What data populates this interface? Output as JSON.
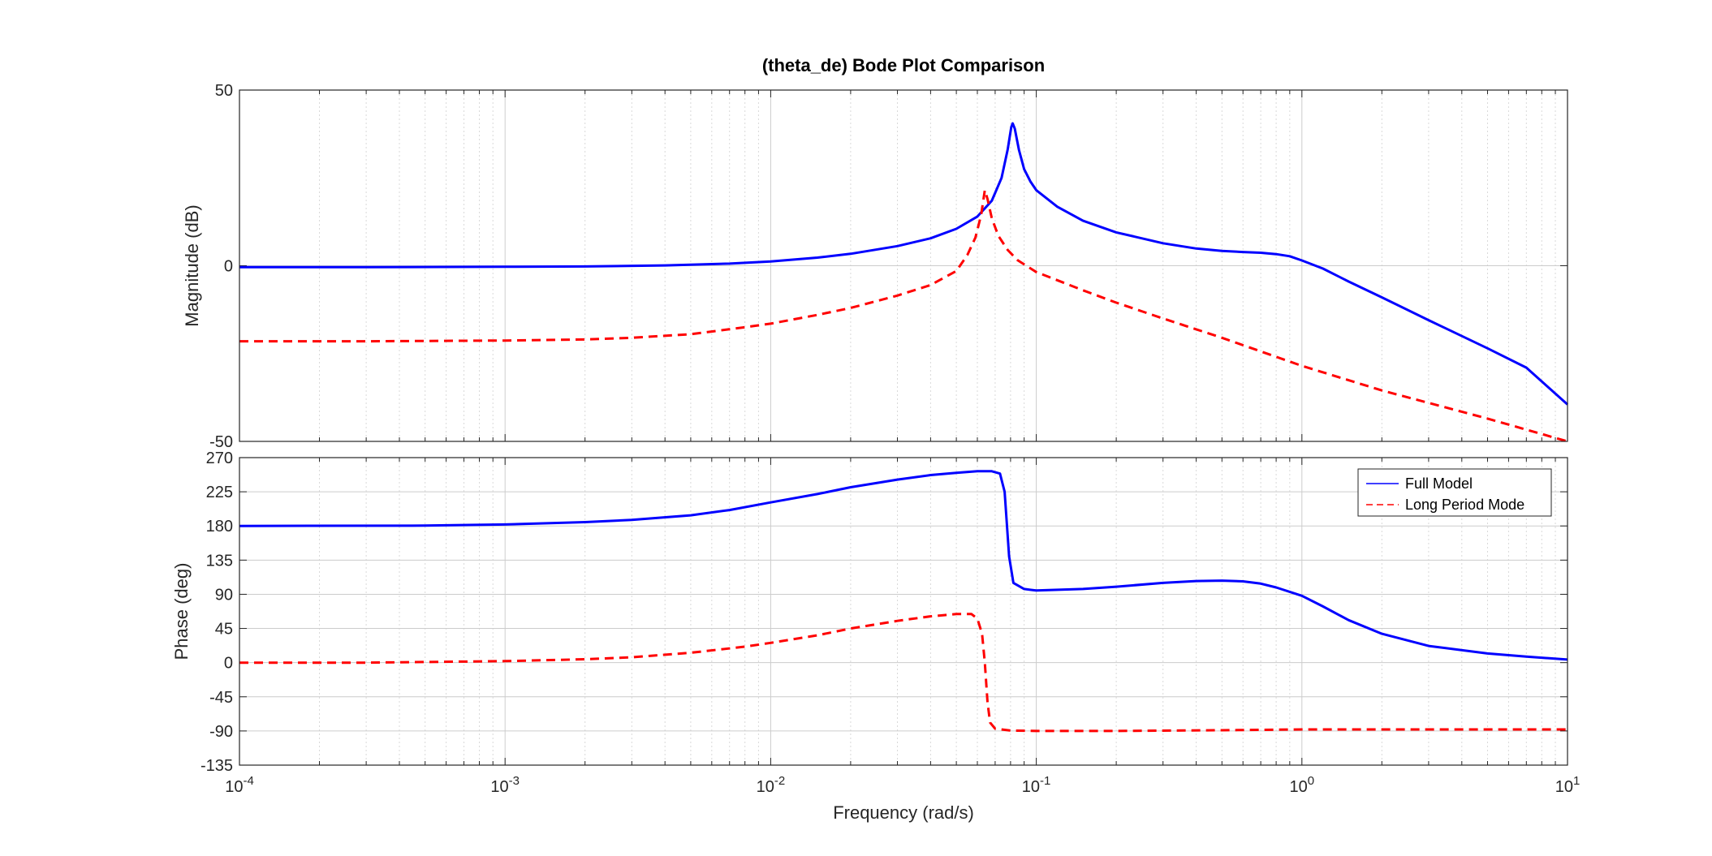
{
  "chart_data": {
    "type": "line",
    "title": "(theta_de) Bode Plot Comparison",
    "xlabel": "Frequency  (rad/s)",
    "x_scale": "log",
    "xlim": [
      0.0001,
      10
    ],
    "x_tick_values": [
      0.0001,
      0.001,
      0.01,
      0.1,
      1,
      10
    ],
    "x_tick_labels": [
      {
        "base": "10",
        "exp": "-4"
      },
      {
        "base": "10",
        "exp": "-3"
      },
      {
        "base": "10",
        "exp": "-2"
      },
      {
        "base": "10",
        "exp": "-1"
      },
      {
        "base": "10",
        "exp": "0"
      },
      {
        "base": "10",
        "exp": "1"
      }
    ],
    "grid": true,
    "legend": {
      "placement": "top-right",
      "in_panel": "phase"
    },
    "magnitude": {
      "ylabel": "Magnitude (dB)",
      "ylim": [
        -50,
        50
      ],
      "y_ticks": [
        -50,
        0,
        50
      ],
      "y_tick_labels": [
        "-50",
        "0",
        "50"
      ],
      "series": [
        {
          "name": "Full Model",
          "color": "#0000ff",
          "style": "solid",
          "points": [
            [
              0.0001,
              -0.4
            ],
            [
              0.0003,
              -0.4
            ],
            [
              0.001,
              -0.3
            ],
            [
              0.002,
              -0.2
            ],
            [
              0.004,
              0.1
            ],
            [
              0.007,
              0.6
            ],
            [
              0.01,
              1.2
            ],
            [
              0.015,
              2.3
            ],
            [
              0.02,
              3.4
            ],
            [
              0.03,
              5.6
            ],
            [
              0.04,
              7.8
            ],
            [
              0.05,
              10.5
            ],
            [
              0.06,
              14
            ],
            [
              0.068,
              18.5
            ],
            [
              0.074,
              25
            ],
            [
              0.078,
              33
            ],
            [
              0.0805,
              39.5
            ],
            [
              0.0815,
              40.5
            ],
            [
              0.083,
              39
            ],
            [
              0.086,
              33
            ],
            [
              0.09,
              27.5
            ],
            [
              0.095,
              24
            ],
            [
              0.1,
              21.5
            ],
            [
              0.12,
              16.8
            ],
            [
              0.15,
              12.8
            ],
            [
              0.2,
              9.5
            ],
            [
              0.3,
              6.4
            ],
            [
              0.4,
              4.9
            ],
            [
              0.5,
              4.2
            ],
            [
              0.6,
              3.9
            ],
            [
              0.7,
              3.7
            ],
            [
              0.8,
              3.3
            ],
            [
              0.9,
              2.7
            ],
            [
              1,
              1.5
            ],
            [
              1.2,
              -0.8
            ],
            [
              1.5,
              -4.5
            ],
            [
              2,
              -9
            ],
            [
              3,
              -15.5
            ],
            [
              5,
              -23.5
            ],
            [
              7,
              -29
            ],
            [
              10,
              -39.5
            ]
          ]
        },
        {
          "name": "Long Period Mode",
          "color": "#ff0000",
          "style": "dashed",
          "points": [
            [
              0.0001,
              -21.5
            ],
            [
              0.0003,
              -21.5
            ],
            [
              0.001,
              -21.3
            ],
            [
              0.002,
              -21
            ],
            [
              0.003,
              -20.5
            ],
            [
              0.005,
              -19.5
            ],
            [
              0.008,
              -17.5
            ],
            [
              0.01,
              -16.5
            ],
            [
              0.015,
              -14
            ],
            [
              0.02,
              -12
            ],
            [
              0.03,
              -8.5
            ],
            [
              0.04,
              -5.5
            ],
            [
              0.05,
              -1.5
            ],
            [
              0.055,
              3
            ],
            [
              0.059,
              8
            ],
            [
              0.062,
              14.5
            ],
            [
              0.064,
              21.5
            ],
            [
              0.0655,
              19
            ],
            [
              0.068,
              13.5
            ],
            [
              0.072,
              8.5
            ],
            [
              0.078,
              4.5
            ],
            [
              0.085,
              1.6
            ],
            [
              0.1,
              -1.8
            ],
            [
              0.15,
              -7
            ],
            [
              0.2,
              -10.5
            ],
            [
              0.3,
              -15
            ],
            [
              0.5,
              -20.5
            ],
            [
              1,
              -28.5
            ],
            [
              2,
              -35.5
            ],
            [
              5,
              -43.5
            ],
            [
              10,
              -50
            ]
          ]
        }
      ]
    },
    "phase": {
      "ylabel": "Phase (deg)",
      "ylim": [
        -135,
        270
      ],
      "y_ticks": [
        -135,
        -90,
        -45,
        0,
        45,
        90,
        135,
        180,
        225,
        270
      ],
      "y_tick_labels": [
        "-135",
        "-90",
        "-45",
        "0",
        "45",
        "90",
        "135",
        "180",
        "225",
        "270"
      ],
      "series": [
        {
          "name": "Full Model",
          "color": "#0000ff",
          "style": "solid",
          "points": [
            [
              0.0001,
              180
            ],
            [
              0.0005,
              180.5
            ],
            [
              0.001,
              182
            ],
            [
              0.002,
              185
            ],
            [
              0.003,
              188
            ],
            [
              0.005,
              194
            ],
            [
              0.007,
              201
            ],
            [
              0.01,
              211
            ],
            [
              0.015,
              222
            ],
            [
              0.02,
              231
            ],
            [
              0.03,
              241
            ],
            [
              0.04,
              247
            ],
            [
              0.05,
              250
            ],
            [
              0.06,
              252
            ],
            [
              0.068,
              252
            ],
            [
              0.073,
              249
            ],
            [
              0.076,
              225
            ],
            [
              0.079,
              140
            ],
            [
              0.082,
              105
            ],
            [
              0.09,
              97
            ],
            [
              0.1,
              95
            ],
            [
              0.15,
              97
            ],
            [
              0.2,
              100
            ],
            [
              0.3,
              105
            ],
            [
              0.4,
              107.5
            ],
            [
              0.5,
              108
            ],
            [
              0.6,
              107
            ],
            [
              0.7,
              104
            ],
            [
              0.8,
              99
            ],
            [
              1,
              88
            ],
            [
              1.2,
              74
            ],
            [
              1.5,
              56
            ],
            [
              2,
              38
            ],
            [
              3,
              22
            ],
            [
              5,
              12
            ],
            [
              7,
              8
            ],
            [
              10,
              4
            ]
          ]
        },
        {
          "name": "Long Period Mode",
          "color": "#ff0000",
          "style": "dashed",
          "points": [
            [
              0.0001,
              0
            ],
            [
              0.0003,
              0
            ],
            [
              0.001,
              2
            ],
            [
              0.002,
              4.5
            ],
            [
              0.003,
              7
            ],
            [
              0.005,
              13
            ],
            [
              0.008,
              21
            ],
            [
              0.01,
              26
            ],
            [
              0.015,
              36
            ],
            [
              0.02,
              45
            ],
            [
              0.03,
              55
            ],
            [
              0.04,
              61
            ],
            [
              0.05,
              64
            ],
            [
              0.057,
              64
            ],
            [
              0.06,
              58
            ],
            [
              0.0625,
              38
            ],
            [
              0.064,
              0
            ],
            [
              0.0655,
              -52
            ],
            [
              0.067,
              -79
            ],
            [
              0.07,
              -87
            ],
            [
              0.08,
              -89.5
            ],
            [
              0.1,
              -90
            ],
            [
              0.2,
              -90
            ],
            [
              0.5,
              -89
            ],
            [
              1,
              -88
            ],
            [
              5,
              -88
            ],
            [
              10,
              -88
            ]
          ]
        }
      ]
    }
  }
}
